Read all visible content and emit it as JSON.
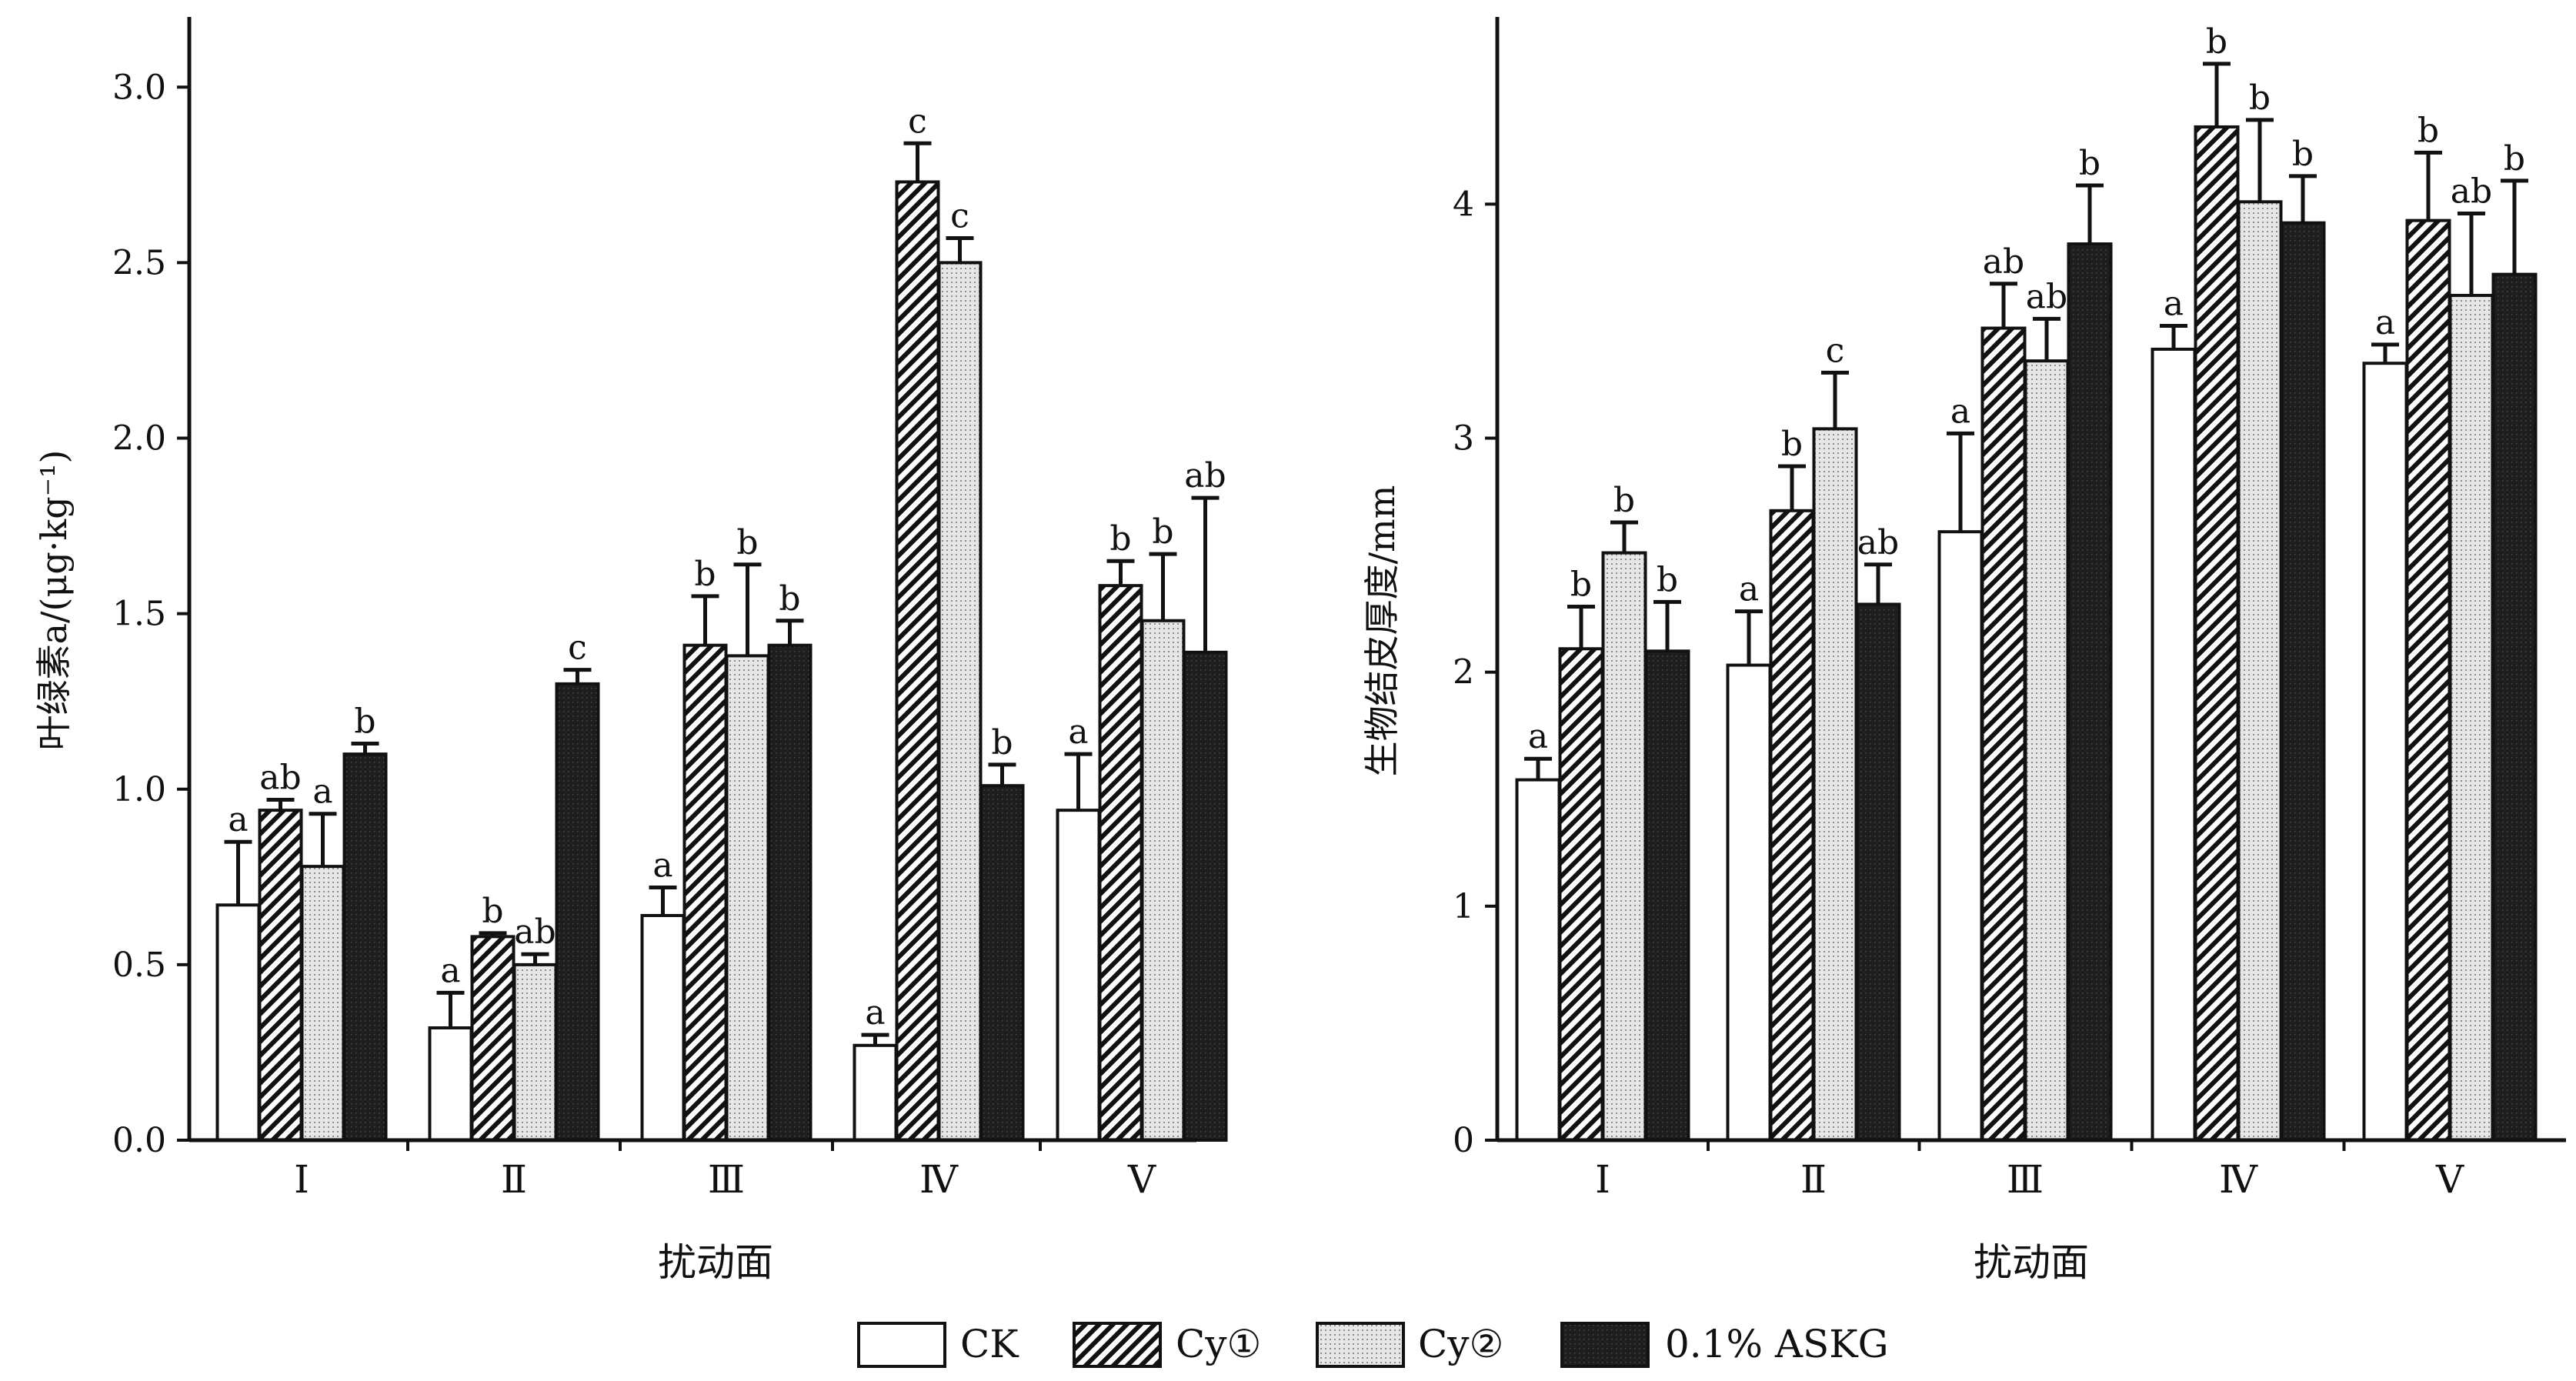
{
  "colors": {
    "ink": "#111111",
    "paper": "#ffffff",
    "dark_fill": "#1e1e1e",
    "dot_fill": "#e6e6e6",
    "dot_ink": "#8c8c8c"
  },
  "legend": {
    "items": [
      {
        "label": "CK",
        "pattern": "white"
      },
      {
        "label": "Cy①",
        "pattern": "hatch"
      },
      {
        "label": "Cy②",
        "pattern": "dots"
      },
      {
        "label": "0.1% ASKG",
        "pattern": "dark"
      }
    ]
  },
  "chart_data": [
    {
      "type": "bar",
      "title": "",
      "xlabel": "扰动面",
      "ylabel": "叶绿素a/(μg·kg⁻¹)",
      "ylim": [
        0,
        3.2
      ],
      "yticks": [
        "0.0",
        "0.5",
        "1.0",
        "1.5",
        "2.0",
        "2.5",
        "3.0"
      ],
      "ytick_values": [
        0,
        0.5,
        1.0,
        1.5,
        2.0,
        2.5,
        3.0
      ],
      "categories": [
        "Ⅰ",
        "Ⅱ",
        "Ⅲ",
        "Ⅳ",
        "Ⅴ"
      ],
      "series": [
        {
          "name": "CK",
          "values": [
            0.67,
            0.32,
            0.64,
            0.27,
            0.94
          ],
          "errors": [
            0.18,
            0.1,
            0.08,
            0.03,
            0.16
          ],
          "letters": [
            "a",
            "a",
            "a",
            "a",
            "a"
          ]
        },
        {
          "name": "Cy①",
          "values": [
            0.94,
            0.58,
            1.41,
            2.73,
            1.58
          ],
          "errors": [
            0.03,
            0.01,
            0.14,
            0.11,
            0.07
          ],
          "letters": [
            "ab",
            "b",
            "b",
            "c",
            "b"
          ]
        },
        {
          "name": "Cy②",
          "values": [
            0.78,
            0.5,
            1.38,
            2.5,
            1.48
          ],
          "errors": [
            0.15,
            0.03,
            0.26,
            0.07,
            0.19
          ],
          "letters": [
            "a",
            "ab",
            "b",
            "c",
            "b"
          ]
        },
        {
          "name": "0.1% ASKG",
          "values": [
            1.1,
            1.3,
            1.41,
            1.01,
            1.39
          ],
          "errors": [
            0.03,
            0.04,
            0.07,
            0.06,
            0.44
          ],
          "letters": [
            "b",
            "c",
            "b",
            "b",
            "ab"
          ]
        }
      ]
    },
    {
      "type": "bar",
      "title": "",
      "xlabel": "扰动面",
      "ylabel": "生物结皮厚度/mm",
      "ylim": [
        0,
        4.8
      ],
      "yticks": [
        "0",
        "1",
        "2",
        "3",
        "4"
      ],
      "ytick_values": [
        0,
        1,
        2,
        3,
        4
      ],
      "categories": [
        "Ⅰ",
        "Ⅱ",
        "Ⅲ",
        "Ⅳ",
        "Ⅴ"
      ],
      "series": [
        {
          "name": "CK",
          "values": [
            1.54,
            2.03,
            2.6,
            3.38,
            3.32
          ],
          "errors": [
            0.09,
            0.23,
            0.42,
            0.1,
            0.08
          ],
          "letters": [
            "a",
            "a",
            "a",
            "a",
            "a"
          ]
        },
        {
          "name": "Cy①",
          "values": [
            2.1,
            2.69,
            3.47,
            4.33,
            3.93
          ],
          "errors": [
            0.18,
            0.19,
            0.19,
            0.27,
            0.29
          ],
          "letters": [
            "b",
            "b",
            "ab",
            "b",
            "b"
          ]
        },
        {
          "name": "Cy②",
          "values": [
            2.51,
            3.04,
            3.33,
            4.01,
            3.61
          ],
          "errors": [
            0.13,
            0.24,
            0.18,
            0.35,
            0.35
          ],
          "letters": [
            "b",
            "c",
            "ab",
            "b",
            "ab"
          ]
        },
        {
          "name": "0.1% ASKG",
          "values": [
            2.09,
            2.29,
            3.83,
            3.92,
            3.7
          ],
          "errors": [
            0.21,
            0.17,
            0.25,
            0.2,
            0.4
          ],
          "letters": [
            "b",
            "ab",
            "b",
            "b",
            "b"
          ]
        }
      ]
    }
  ]
}
